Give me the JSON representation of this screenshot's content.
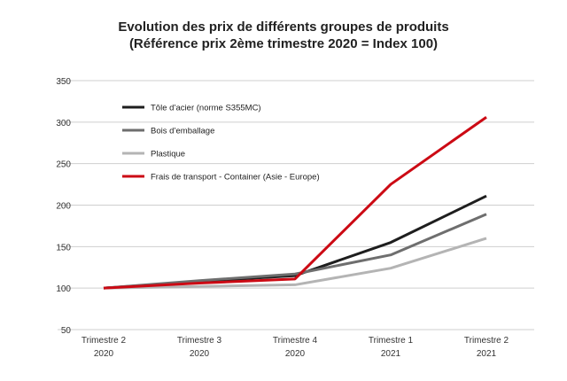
{
  "chart_data": {
    "type": "line",
    "title": "Evolution des prix de différents groupes de produits",
    "subtitle": "(Référence prix 2ème trimestre 2020 = Index 100)",
    "xlabel": "",
    "ylabel": "",
    "categories": [
      [
        "Trimestre 2",
        "2020"
      ],
      [
        "Trimestre 3",
        "2020"
      ],
      [
        "Trimestre 4",
        "2020"
      ],
      [
        "Trimestre 1",
        "2021"
      ],
      [
        "Trimestre 2",
        "2021"
      ]
    ],
    "ylim": [
      50,
      350
    ],
    "yticks": [
      50,
      100,
      150,
      200,
      250,
      300,
      350
    ],
    "grid": true,
    "legend_position": "top-left",
    "series": [
      {
        "name": "Tôle d’acier (norme S355MC)",
        "color": "#1e1e1e",
        "values": [
          100,
          108,
          115,
          155,
          211
        ]
      },
      {
        "name": "Bois d’emballage",
        "color": "#6e6e6e",
        "values": [
          100,
          109,
          117,
          140,
          189
        ]
      },
      {
        "name": "Plastique",
        "color": "#b4b4b4",
        "values": [
          100,
          102,
          104,
          124,
          160
        ]
      },
      {
        "name": "Frais de transport  - Container (Asie - Europe)",
        "color": "#cc0a14",
        "values": [
          100,
          106,
          111,
          225,
          306
        ]
      }
    ]
  }
}
